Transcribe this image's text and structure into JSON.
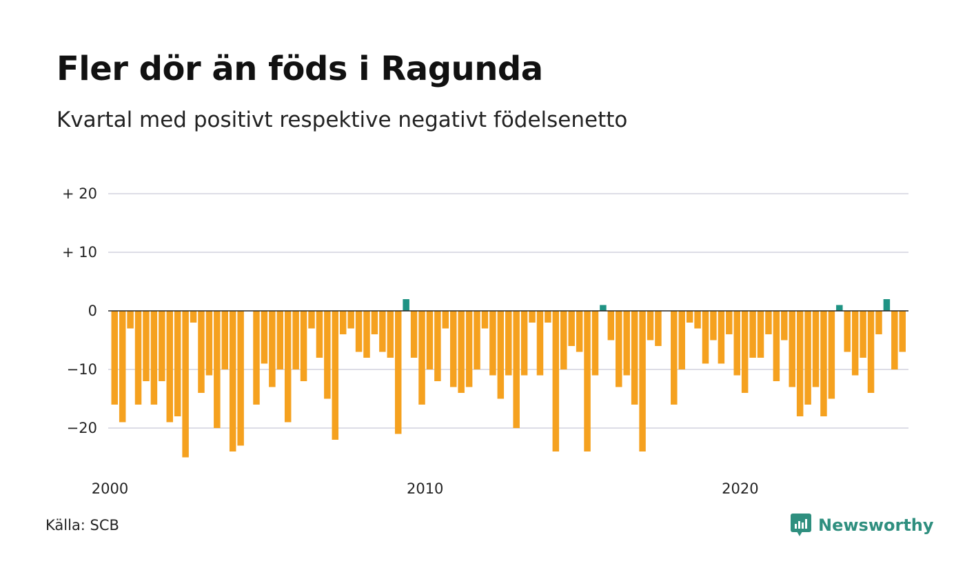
{
  "header": {
    "title": "Fler dör än föds i Ragunda",
    "subtitle": "Kvartal med positivt respektive negativt födelsenetto"
  },
  "footer": {
    "source": "Källa: SCB",
    "brand": "Newsworthy",
    "brand_icon": "newsworthy-chart-bubble-icon"
  },
  "colors": {
    "negative": "#f5a11f",
    "positive": "#1f9384",
    "grid": "#dddde6",
    "zero_line": "#222222",
    "brand": "#2f8f7f"
  },
  "chart_data": {
    "type": "bar",
    "y_tick_labels": [
      "+ 20",
      "+ 10",
      "0",
      "−10",
      "−20"
    ],
    "y_ticks": [
      20,
      10,
      0,
      -10,
      -20
    ],
    "ylim": [
      -25,
      20
    ],
    "x_tick_labels": [
      "2000",
      "2010",
      "2020"
    ],
    "x_ticks": [
      2000,
      2010,
      2020
    ],
    "x_start": 2000,
    "grid": true,
    "values": [
      -16,
      -19,
      -3,
      -16,
      -12,
      -16,
      -12,
      -19,
      -18,
      -25,
      -2,
      -14,
      -11,
      -20,
      -10,
      -24,
      -23,
      0,
      -16,
      -9,
      -13,
      -10,
      -19,
      -10,
      -12,
      -3,
      -8,
      -15,
      -22,
      -4,
      -3,
      -7,
      -8,
      -4,
      -7,
      -8,
      -21,
      2,
      -8,
      -16,
      -10,
      -12,
      -3,
      -13,
      -14,
      -13,
      -10,
      -3,
      -11,
      -15,
      -11,
      -20,
      -11,
      -2,
      -11,
      -2,
      -24,
      -10,
      -6,
      -7,
      -24,
      -11,
      1,
      -5,
      -13,
      -11,
      -16,
      -24,
      -5,
      -6,
      0,
      -16,
      -10,
      -2,
      -3,
      -9,
      -5,
      -9,
      -4,
      -11,
      -14,
      -8,
      -8,
      -4,
      -12,
      -5,
      -13,
      -18,
      -16,
      -13,
      -18,
      -15,
      1,
      -7,
      -11,
      -8,
      -14,
      -4,
      2,
      -10,
      -7
    ]
  }
}
